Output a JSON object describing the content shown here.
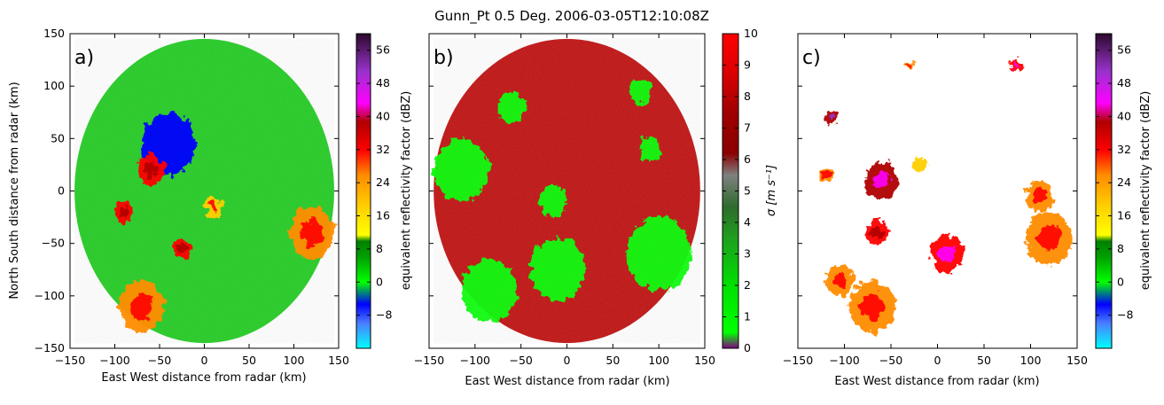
{
  "figure": {
    "title": "Gunn_Pt 0.5 Deg. 2006-03-05T12:10:08Z"
  },
  "colors": {
    "reflectivity_colormap": [
      "#00ffff",
      "#0000ff",
      "#00ff00",
      "#008000",
      "#ffff00",
      "#ff8c00",
      "#ff0000",
      "#8b0000",
      "#ff00ff",
      "#9932cc",
      "#2b0a2b"
    ],
    "spectrum_width_colormap": [
      "#800080",
      "#00ff00",
      "#2e8b2e",
      "#808080",
      "#8b0000",
      "#ff0000"
    ],
    "background_echo": "#22cc22",
    "heavy_echo": "#cc1111"
  },
  "chart_data": [
    {
      "id": "a",
      "type": "heatmap",
      "panel_label": "a)",
      "variable": "reflectivity",
      "xlabel": "East West distance from radar (km)",
      "ylabel": "North South distance from radar (km)",
      "xlim": [
        -150,
        150
      ],
      "ylim": [
        -150,
        150
      ],
      "xticks": [
        -150,
        -100,
        -50,
        0,
        50,
        100,
        150
      ],
      "yticks": [
        -150,
        -100,
        -50,
        0,
        50,
        100,
        150
      ],
      "xtick_labels": [
        "−150",
        "−100",
        "−50",
        "0",
        "50",
        "100",
        "150"
      ],
      "ytick_labels": [
        "−150",
        "−100",
        "−50",
        "0",
        "50",
        "100",
        "150"
      ],
      "range_km": 145,
      "colorbar": {
        "label": "equivalent reflectivity factor (dBZ)",
        "min": -16,
        "max": 60,
        "ticks": [
          -8,
          0,
          8,
          16,
          24,
          32,
          40,
          48,
          56
        ],
        "tick_labels": [
          "−8",
          "0",
          "8",
          "16",
          "24",
          "32",
          "40",
          "48",
          "56"
        ]
      },
      "echoes": [
        {
          "x": -40,
          "y": 45,
          "r": 30,
          "dbz": -4
        },
        {
          "x": 120,
          "y": -40,
          "r": 25,
          "dbz": 30
        },
        {
          "x": -70,
          "y": -110,
          "r": 25,
          "dbz": 28
        },
        {
          "x": -60,
          "y": 20,
          "r": 15,
          "dbz": 36
        },
        {
          "x": -90,
          "y": -20,
          "r": 10,
          "dbz": 36
        },
        {
          "x": -25,
          "y": -55,
          "r": 10,
          "dbz": 34
        },
        {
          "x": 10,
          "y": -15,
          "r": 10,
          "dbz": 24
        }
      ]
    },
    {
      "id": "b",
      "type": "heatmap",
      "panel_label": "b)",
      "variable": "spectrum_width",
      "xlabel": "East West distance from radar (km)",
      "ylabel": "",
      "xlim": [
        -150,
        150
      ],
      "ylim": [
        -150,
        150
      ],
      "xticks": [
        -150,
        -100,
        -50,
        0,
        50,
        100,
        150
      ],
      "xtick_labels": [
        "−150",
        "−100",
        "−50",
        "0",
        "50",
        "100",
        "150"
      ],
      "range_km": 145,
      "colorbar": {
        "label": "σ [m s⁻¹]",
        "min": 0,
        "max": 10,
        "ticks": [
          0,
          1,
          2,
          3,
          4,
          5,
          6,
          7,
          8,
          9,
          10
        ],
        "tick_labels": [
          "0",
          "1",
          "2",
          "3",
          "4",
          "5",
          "6",
          "7",
          "8",
          "9",
          "10"
        ]
      },
      "low_width_areas": [
        {
          "x": -115,
          "y": 20,
          "r": 30,
          "sigma": 1.5
        },
        {
          "x": -85,
          "y": -95,
          "r": 30,
          "sigma": 1.5
        },
        {
          "x": -10,
          "y": -75,
          "r": 30,
          "sigma": 1.5
        },
        {
          "x": 100,
          "y": -60,
          "r": 35,
          "sigma": 1.5
        },
        {
          "x": -60,
          "y": 80,
          "r": 15,
          "sigma": 1.5
        },
        {
          "x": -15,
          "y": -10,
          "r": 15,
          "sigma": 1.5
        },
        {
          "x": 80,
          "y": 95,
          "r": 12,
          "sigma": 1.5
        },
        {
          "x": 90,
          "y": 40,
          "r": 12,
          "sigma": 1.5
        }
      ]
    },
    {
      "id": "c",
      "type": "heatmap",
      "panel_label": "c)",
      "variable": "filtered_reflectivity",
      "xlabel": "East West distance from radar (km)",
      "ylabel": "",
      "xlim": [
        -150,
        150
      ],
      "ylim": [
        -150,
        150
      ],
      "xticks": [
        -150,
        -100,
        -50,
        0,
        50,
        100,
        150
      ],
      "xtick_labels": [
        "−150",
        "−100",
        "−50",
        "0",
        "50",
        "100",
        "150"
      ],
      "colorbar": {
        "label": "equivalent reflectivity factor (dBZ)",
        "min": -16,
        "max": 60,
        "ticks": [
          -8,
          0,
          8,
          16,
          24,
          32,
          40,
          48,
          56
        ],
        "tick_labels": [
          "−8",
          "0",
          "8",
          "16",
          "24",
          "32",
          "40",
          "48",
          "56"
        ]
      },
      "echoes": [
        {
          "x": 120,
          "y": -45,
          "r": 25,
          "dbz": 30
        },
        {
          "x": 110,
          "y": -5,
          "r": 15,
          "dbz": 26
        },
        {
          "x": -70,
          "y": -110,
          "r": 25,
          "dbz": 28
        },
        {
          "x": -105,
          "y": -85,
          "r": 15,
          "dbz": 26
        },
        {
          "x": -60,
          "y": 10,
          "r": 18,
          "dbz": 40
        },
        {
          "x": -65,
          "y": -40,
          "r": 12,
          "dbz": 36
        },
        {
          "x": 10,
          "y": -60,
          "r": 18,
          "dbz": 38
        },
        {
          "x": -120,
          "y": 15,
          "r": 7,
          "dbz": 30
        },
        {
          "x": -115,
          "y": 70,
          "r": 7,
          "dbz": 44
        },
        {
          "x": -20,
          "y": 25,
          "r": 8,
          "dbz": 20
        },
        {
          "x": 85,
          "y": 120,
          "r": 5,
          "dbz": 38
        },
        {
          "x": -30,
          "y": 120,
          "r": 4,
          "dbz": 30
        }
      ]
    }
  ]
}
